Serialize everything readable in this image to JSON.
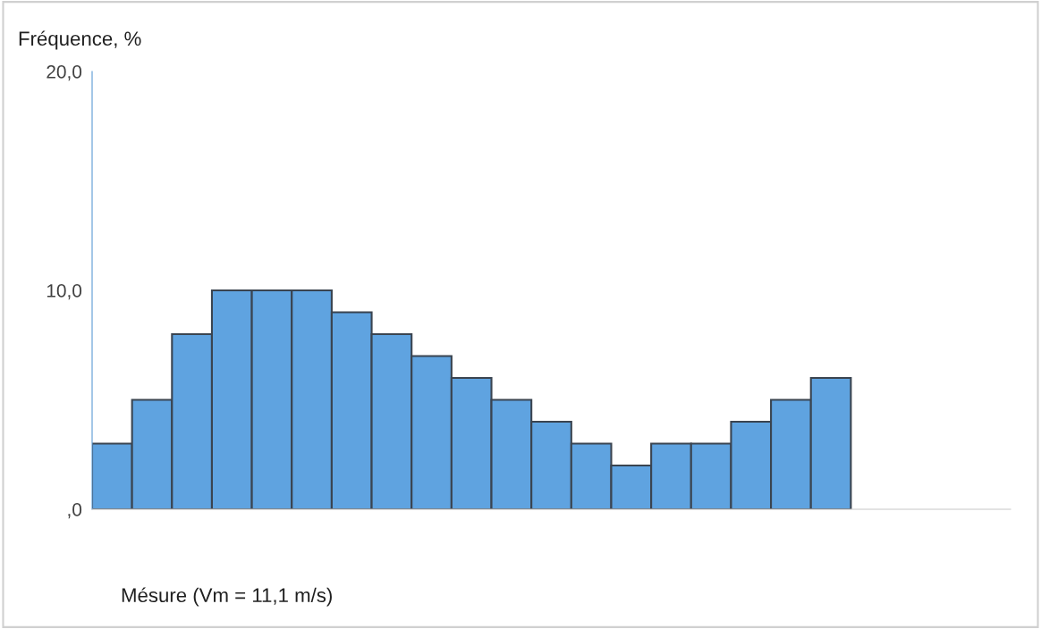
{
  "chart_data": {
    "type": "bar",
    "ylabel": "Fréquence, %",
    "xlabel": "Mésure (Vm = 11,1 m/s)",
    "categories": [
      null,
      null,
      null,
      null,
      null,
      null,
      null,
      null,
      null,
      null,
      null,
      null,
      null,
      null,
      null,
      null,
      null,
      null,
      null,
      null,
      null,
      null,
      null
    ],
    "values": [
      3,
      5,
      8,
      10,
      10,
      10,
      9,
      8,
      7,
      6,
      5,
      4,
      3,
      2,
      3,
      3,
      4,
      5,
      6,
      null,
      null,
      null,
      null
    ],
    "color": "#5fa3e0",
    "ylim": [
      0,
      20
    ],
    "yticks": [
      {
        "value": 0,
        "label": ",0"
      },
      {
        "value": 10,
        "label": "10,0"
      },
      {
        "value": 20,
        "label": "20,0"
      }
    ],
    "grid": false,
    "legend": false
  }
}
